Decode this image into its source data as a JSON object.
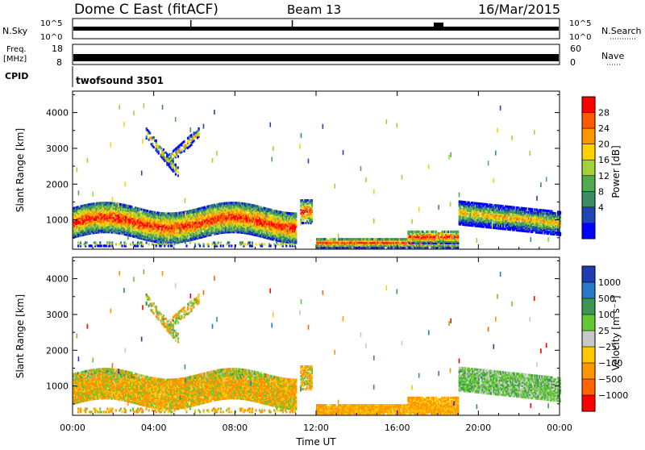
{
  "header": {
    "station": "Dome C East (fitACF)",
    "beam": "Beam 13",
    "date": "16/Mar/2015"
  },
  "panels": {
    "nsky_label": "N.Sky",
    "nsky_ticks": [
      "10^5",
      "10^0"
    ],
    "nsearch_label": "N.Search",
    "freq_label_top": "Freq.",
    "freq_label_unit": "[MHz]",
    "freq_ticks": [
      "18",
      "8"
    ],
    "nave_label": "Nave",
    "nave_ticks": [
      "60",
      "0"
    ],
    "cpid_label": "CPID",
    "cpid_value": "twofsound 3501"
  },
  "chart_data": [
    {
      "type": "heatmap",
      "name": "power",
      "ylabel": "Slant Range [km]",
      "yticks": [
        1000,
        2000,
        3000,
        4000
      ],
      "ylim": [
        180,
        4600
      ],
      "xlim": [
        "00:00",
        "24:00"
      ],
      "colorbar": {
        "label": "Power [dB]",
        "ticks": [
          "28",
          "24",
          "20",
          "16",
          "12",
          "8",
          "4"
        ],
        "colors": [
          "#ff0000",
          "#ff5a00",
          "#ff9600",
          "#ffd200",
          "#a0d23c",
          "#50aa50",
          "#3c8c64",
          "#1e46b4",
          "#0000ff"
        ]
      }
    },
    {
      "type": "heatmap",
      "name": "velocity",
      "ylabel": "Slant Range [km]",
      "xlabel": "Time UT",
      "yticks": [
        1000,
        2000,
        3000,
        4000
      ],
      "ylim": [
        180,
        4600
      ],
      "xticks": [
        "00:00",
        "04:00",
        "08:00",
        "12:00",
        "16:00",
        "20:00",
        "00:00"
      ],
      "colorbar": {
        "label": "Velocity [m s⁻¹]",
        "ticks": [
          "1000",
          "500",
          "100",
          "25",
          "−25",
          "−100",
          "−500",
          "−1000"
        ],
        "colors": [
          "#1e3cb4",
          "#2878c8",
          "#3c9650",
          "#64c832",
          "#c8c8c8",
          "#ffc800",
          "#ff9600",
          "#ff6400",
          "#ff0000"
        ]
      }
    }
  ]
}
